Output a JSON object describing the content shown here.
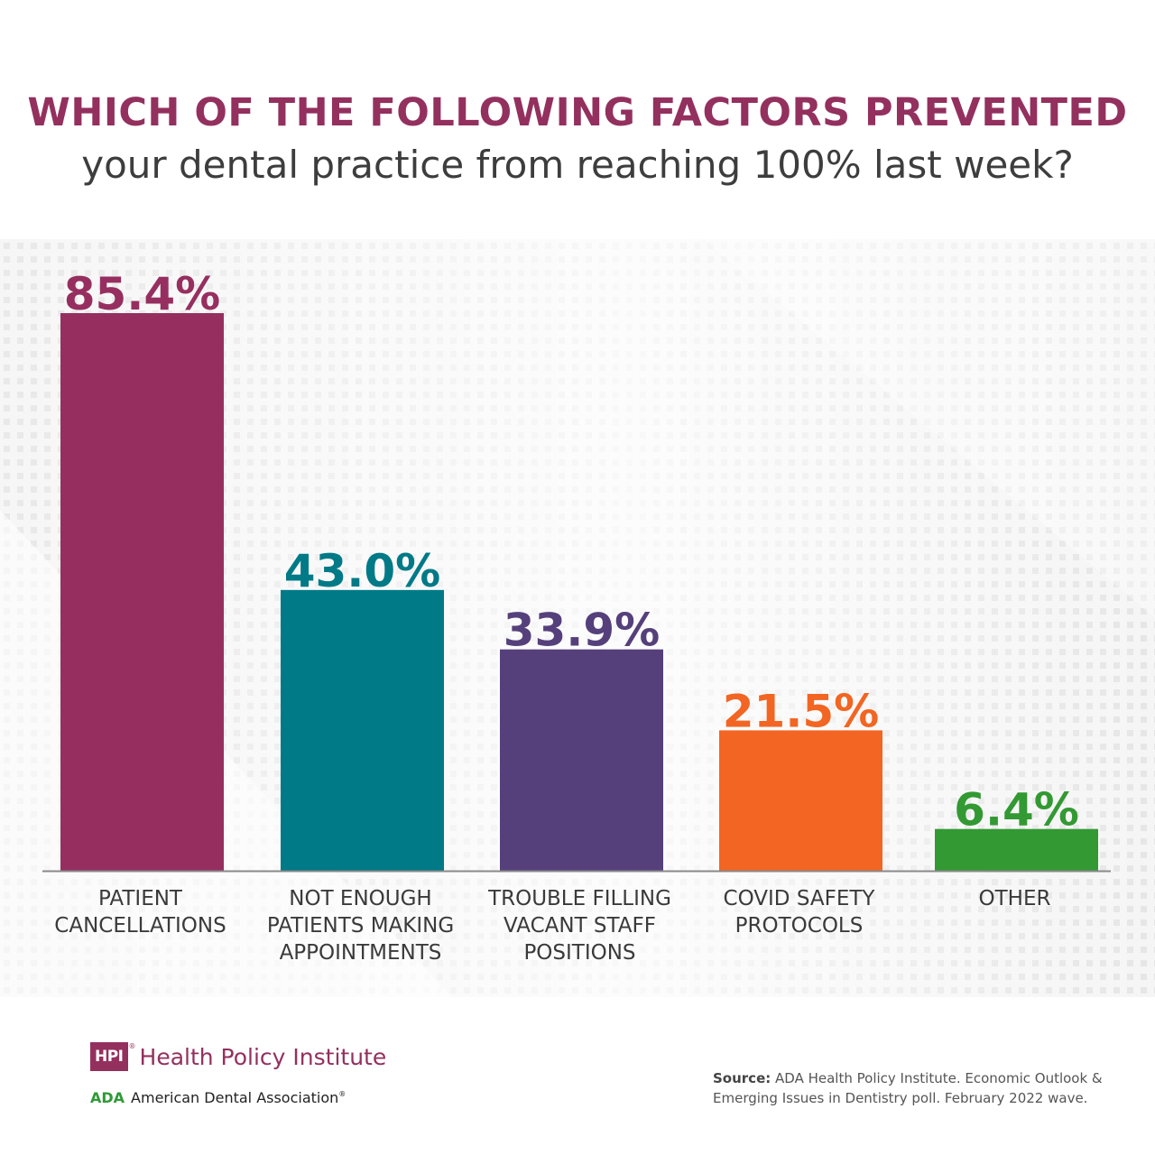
{
  "title_line1": "WHICH OF THE FOLLOWING FACTORS PREVENTED",
  "title_line2": "your dental practice from reaching 100% last week?",
  "chart_data": {
    "type": "bar",
    "categories": [
      [
        "PATIENT",
        "CANCELLATIONS"
      ],
      [
        "NOT ENOUGH",
        "PATIENTS MAKING",
        "APPOINTMENTS"
      ],
      [
        "TROUBLE FILLING",
        "VACANT STAFF",
        "POSITIONS"
      ],
      [
        "COVID SAFETY",
        "PROTOCOLS"
      ],
      [
        "OTHER"
      ]
    ],
    "values": [
      85.4,
      43.0,
      33.9,
      21.5,
      6.4
    ],
    "value_labels": [
      "85.4%",
      "43.0%",
      "33.9%",
      "21.5%",
      "6.4%"
    ],
    "colors": [
      "#962f60",
      "#007a87",
      "#56407b",
      "#f26522",
      "#339933"
    ],
    "ylim": [
      0,
      85.4
    ],
    "grid": false,
    "legend": "none"
  },
  "source": {
    "label": "Source:",
    "text": "ADA Health Policy Institute. Economic Outlook & Emerging Issues in Dentistry poll. February 2022 wave."
  },
  "logos": {
    "hpi_mark": "HPI",
    "hpi_reg": "®",
    "hpi_name": "Health Policy Institute",
    "ada_mark": "ADA",
    "ada_name": "American Dental Association",
    "ada_reg": "®"
  }
}
